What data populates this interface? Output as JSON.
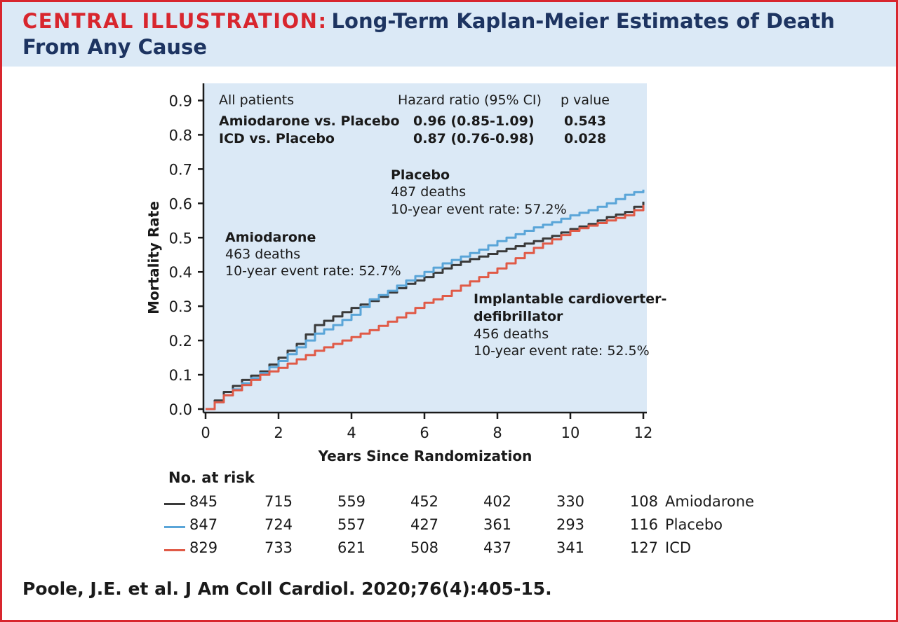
{
  "header": {
    "label": "CENTRAL ILLUSTRATION:",
    "title": "Long-Term Kaplan-Meier Estimates of Death From Any Cause"
  },
  "stats_table": {
    "headers": [
      "All patients",
      "Hazard ratio (95% CI)",
      "p value"
    ],
    "rows": [
      {
        "comparison": "Amiodarone vs. Placebo",
        "hr": "0.96 (0.85-1.09)",
        "p": "0.543"
      },
      {
        "comparison": "ICD vs. Placebo",
        "hr": "0.87 (0.76-0.98)",
        "p": "0.028"
      }
    ]
  },
  "annotations": {
    "placebo": {
      "name": "Placebo",
      "deaths": "487 deaths",
      "rate": "10-year event rate: 57.2%"
    },
    "amiodarone": {
      "name": "Amiodarone",
      "deaths": "463 deaths",
      "rate": "10-year event rate: 52.7%"
    },
    "icd": {
      "name_line1": "Implantable cardioverter-",
      "name_line2": "defibrillator",
      "deaths": "456 deaths",
      "rate": "10-year event rate: 52.5%"
    }
  },
  "risk_table": {
    "title": "No. at risk",
    "rows": [
      {
        "label": "Amiodarone",
        "color": "#3a3a3a",
        "values": [
          "845",
          "715",
          "559",
          "452",
          "402",
          "330",
          "108"
        ]
      },
      {
        "label": "Placebo",
        "color": "#5aa5d8",
        "values": [
          "847",
          "724",
          "557",
          "427",
          "361",
          "293",
          "116"
        ]
      },
      {
        "label": "ICD",
        "color": "#e05a47",
        "values": [
          "829",
          "733",
          "621",
          "508",
          "437",
          "341",
          "127"
        ]
      }
    ]
  },
  "citation": "Poole, J.E. et al. J Am Coll Cardiol. 2020;76(4):405-15.",
  "chart_data": {
    "type": "line",
    "title": "",
    "xlabel": "Years Since Randomization",
    "ylabel": "Mortality Rate",
    "xlim": [
      0,
      12
    ],
    "ylim": [
      0,
      0.95
    ],
    "x_ticks": [
      0,
      2,
      4,
      6,
      8,
      10,
      12
    ],
    "x_tick_labels": [
      "0",
      "2",
      "4",
      "6",
      "8",
      "10",
      "12"
    ],
    "y_ticks": [
      0,
      0.1,
      0.2,
      0.3,
      0.4,
      0.5,
      0.6,
      0.7,
      0.8,
      0.9
    ],
    "y_tick_labels": [
      "0.0",
      "0.1",
      "0.2",
      "0.3",
      "0.4",
      "0.5",
      "0.6",
      "0.7",
      "0.8",
      "0.9"
    ],
    "grid": false,
    "plot_background": "#dbe9f6",
    "series": [
      {
        "name": "Amiodarone",
        "color": "#3a3a3a",
        "x": [
          0,
          0.5,
          1,
          1.5,
          2,
          2.5,
          3,
          3.5,
          4,
          4.5,
          5,
          5.5,
          6,
          6.5,
          7,
          7.5,
          8,
          8.5,
          9,
          9.5,
          10,
          10.5,
          11,
          11.5,
          12
        ],
        "y": [
          0,
          0.05,
          0.085,
          0.11,
          0.15,
          0.19,
          0.245,
          0.27,
          0.295,
          0.315,
          0.34,
          0.365,
          0.385,
          0.41,
          0.43,
          0.445,
          0.46,
          0.475,
          0.49,
          0.505,
          0.525,
          0.54,
          0.56,
          0.575,
          0.605
        ]
      },
      {
        "name": "Placebo",
        "color": "#5aa5d8",
        "x": [
          0,
          0.5,
          1,
          1.5,
          2,
          2.5,
          3,
          3.5,
          4,
          4.5,
          5,
          5.5,
          6,
          6.5,
          7,
          7.5,
          8,
          8.5,
          9,
          9.5,
          10,
          10.5,
          11,
          11.5,
          12
        ],
        "y": [
          0,
          0.04,
          0.075,
          0.105,
          0.14,
          0.18,
          0.22,
          0.245,
          0.275,
          0.32,
          0.345,
          0.375,
          0.4,
          0.425,
          0.445,
          0.465,
          0.49,
          0.51,
          0.53,
          0.545,
          0.565,
          0.58,
          0.6,
          0.625,
          0.64
        ]
      },
      {
        "name": "ICD",
        "color": "#e05a47",
        "x": [
          0,
          0.5,
          1,
          1.5,
          2,
          2.5,
          3,
          3.5,
          4,
          4.5,
          5,
          5.5,
          6,
          6.5,
          7,
          7.5,
          8,
          8.5,
          9,
          9.5,
          10,
          10.5,
          11,
          11.5,
          12
        ],
        "y": [
          0,
          0.04,
          0.07,
          0.1,
          0.12,
          0.145,
          0.17,
          0.19,
          0.21,
          0.23,
          0.255,
          0.28,
          0.31,
          0.33,
          0.36,
          0.385,
          0.41,
          0.44,
          0.47,
          0.495,
          0.52,
          0.535,
          0.55,
          0.565,
          0.595
        ]
      }
    ]
  }
}
